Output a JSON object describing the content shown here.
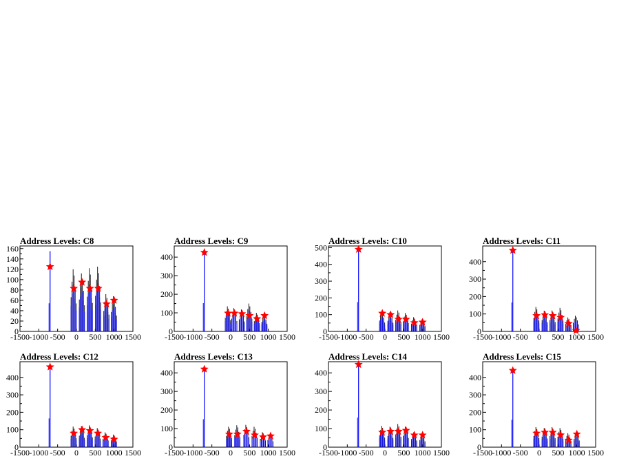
{
  "chart_data": [
    {
      "type": "histogram",
      "title": "Address Levels: C8",
      "xlim": [
        -1500,
        1500
      ],
      "ylim": [
        0,
        165
      ],
      "xticks": [
        -1500,
        -1000,
        -500,
        0,
        500,
        1000,
        1500
      ],
      "yticks": [
        0,
        20,
        40,
        60,
        80,
        100,
        120,
        140,
        160
      ],
      "peaks": [
        {
          "x": -700,
          "y": 155,
          "marker_y": 125
        },
        {
          "x": -70,
          "y": 120,
          "marker_y": 83
        },
        {
          "x": 150,
          "y": 112,
          "marker_y": 95
        },
        {
          "x": 360,
          "y": 122,
          "marker_y": 83
        },
        {
          "x": 580,
          "y": 125,
          "marker_y": 83
        },
        {
          "x": 800,
          "y": 72,
          "marker_y": 53
        },
        {
          "x": 1000,
          "y": 68,
          "marker_y": 60
        }
      ]
    },
    {
      "type": "histogram",
      "title": "Address Levels: C9",
      "xlim": [
        -1500,
        1500
      ],
      "ylim": [
        0,
        460
      ],
      "xticks": [
        -1500,
        -1000,
        -500,
        0,
        500,
        1000,
        1500
      ],
      "yticks": [
        0,
        100,
        200,
        300,
        400
      ],
      "peaks": [
        {
          "x": -700,
          "y": 435,
          "marker_y": 425
        },
        {
          "x": -70,
          "y": 135,
          "marker_y": 98
        },
        {
          "x": 100,
          "y": 125,
          "marker_y": 98
        },
        {
          "x": 300,
          "y": 118,
          "marker_y": 95
        },
        {
          "x": 500,
          "y": 150,
          "marker_y": 85
        },
        {
          "x": 700,
          "y": 100,
          "marker_y": 68
        },
        {
          "x": 900,
          "y": 92,
          "marker_y": 85
        }
      ]
    },
    {
      "type": "histogram",
      "title": "Address Levels: C10",
      "xlim": [
        -1500,
        1500
      ],
      "ylim": [
        0,
        510
      ],
      "xticks": [
        -1500,
        -1000,
        -500,
        0,
        500,
        1000,
        1500
      ],
      "yticks": [
        0,
        100,
        200,
        300,
        400,
        500
      ],
      "peaks": [
        {
          "x": -700,
          "y": 500,
          "marker_y": 490
        },
        {
          "x": -70,
          "y": 118,
          "marker_y": 108
        },
        {
          "x": 150,
          "y": 115,
          "marker_y": 100
        },
        {
          "x": 360,
          "y": 125,
          "marker_y": 72
        },
        {
          "x": 560,
          "y": 110,
          "marker_y": 72
        },
        {
          "x": 780,
          "y": 85,
          "marker_y": 52
        },
        {
          "x": 1000,
          "y": 72,
          "marker_y": 55
        }
      ]
    },
    {
      "type": "histogram",
      "title": "Address Levels: C11",
      "xlim": [
        -1500,
        1500
      ],
      "ylim": [
        0,
        490
      ],
      "xticks": [
        -1500,
        -1000,
        -500,
        0,
        500,
        1000,
        1500
      ],
      "yticks": [
        0,
        100,
        200,
        300,
        400
      ],
      "peaks": [
        {
          "x": -700,
          "y": 475,
          "marker_y": 465
        },
        {
          "x": -70,
          "y": 140,
          "marker_y": 90
        },
        {
          "x": 150,
          "y": 118,
          "marker_y": 95
        },
        {
          "x": 360,
          "y": 120,
          "marker_y": 90
        },
        {
          "x": 570,
          "y": 135,
          "marker_y": 80
        },
        {
          "x": 780,
          "y": 80,
          "marker_y": 45
        },
        {
          "x": 980,
          "y": 90,
          "marker_y": 5
        }
      ]
    },
    {
      "type": "histogram",
      "title": "Address Levels: C12",
      "xlim": [
        -1500,
        1500
      ],
      "ylim": [
        0,
        490
      ],
      "xticks": [
        -1500,
        -1000,
        -500,
        0,
        500,
        1000,
        1500
      ],
      "yticks": [
        0,
        100,
        200,
        300,
        400
      ],
      "peaks": [
        {
          "x": -700,
          "y": 470,
          "marker_y": 460
        },
        {
          "x": -70,
          "y": 118,
          "marker_y": 80
        },
        {
          "x": 150,
          "y": 120,
          "marker_y": 100
        },
        {
          "x": 360,
          "y": 125,
          "marker_y": 95
        },
        {
          "x": 570,
          "y": 110,
          "marker_y": 80
        },
        {
          "x": 780,
          "y": 85,
          "marker_y": 55
        },
        {
          "x": 1000,
          "y": 72,
          "marker_y": 45
        }
      ]
    },
    {
      "type": "histogram",
      "title": "Address Levels: C13",
      "xlim": [
        -1500,
        1500
      ],
      "ylim": [
        0,
        460
      ],
      "xticks": [
        -1500,
        -1000,
        -500,
        0,
        500,
        1000,
        1500
      ],
      "yticks": [
        0,
        100,
        200,
        300,
        400
      ],
      "peaks": [
        {
          "x": -700,
          "y": 430,
          "marker_y": 420
        },
        {
          "x": -40,
          "y": 110,
          "marker_y": 70
        },
        {
          "x": 180,
          "y": 118,
          "marker_y": 70
        },
        {
          "x": 420,
          "y": 120,
          "marker_y": 85
        },
        {
          "x": 640,
          "y": 110,
          "marker_y": 65
        },
        {
          "x": 860,
          "y": 80,
          "marker_y": 55
        },
        {
          "x": 1060,
          "y": 70,
          "marker_y": 60
        }
      ]
    },
    {
      "type": "histogram",
      "title": "Address Levels: C14",
      "xlim": [
        -1500,
        1500
      ],
      "ylim": [
        0,
        460
      ],
      "xticks": [
        -1500,
        -1000,
        -500,
        0,
        500,
        1000,
        1500
      ],
      "yticks": [
        0,
        100,
        200,
        300,
        400
      ],
      "peaks": [
        {
          "x": -700,
          "y": 455,
          "marker_y": 445
        },
        {
          "x": -70,
          "y": 115,
          "marker_y": 80
        },
        {
          "x": 150,
          "y": 110,
          "marker_y": 85
        },
        {
          "x": 360,
          "y": 125,
          "marker_y": 85
        },
        {
          "x": 560,
          "y": 110,
          "marker_y": 90
        },
        {
          "x": 780,
          "y": 80,
          "marker_y": 65
        },
        {
          "x": 1000,
          "y": 70,
          "marker_y": 65
        }
      ]
    },
    {
      "type": "histogram",
      "title": "Address Levels: C15",
      "xlim": [
        -1500,
        1500
      ],
      "ylim": [
        0,
        490
      ],
      "xticks": [
        -1500,
        -1000,
        -500,
        0,
        500,
        1000,
        1500
      ],
      "yticks": [
        0,
        100,
        200,
        300,
        400
      ],
      "peaks": [
        {
          "x": -700,
          "y": 450,
          "marker_y": 440
        },
        {
          "x": -70,
          "y": 115,
          "marker_y": 80
        },
        {
          "x": 150,
          "y": 110,
          "marker_y": 85
        },
        {
          "x": 360,
          "y": 115,
          "marker_y": 85
        },
        {
          "x": 570,
          "y": 110,
          "marker_y": 70
        },
        {
          "x": 780,
          "y": 80,
          "marker_y": 40
        },
        {
          "x": 1000,
          "y": 85,
          "marker_y": 75
        }
      ]
    }
  ],
  "colors": {
    "histogram": "#0000ff",
    "marker": "#ff0000",
    "spike": "#000000"
  }
}
